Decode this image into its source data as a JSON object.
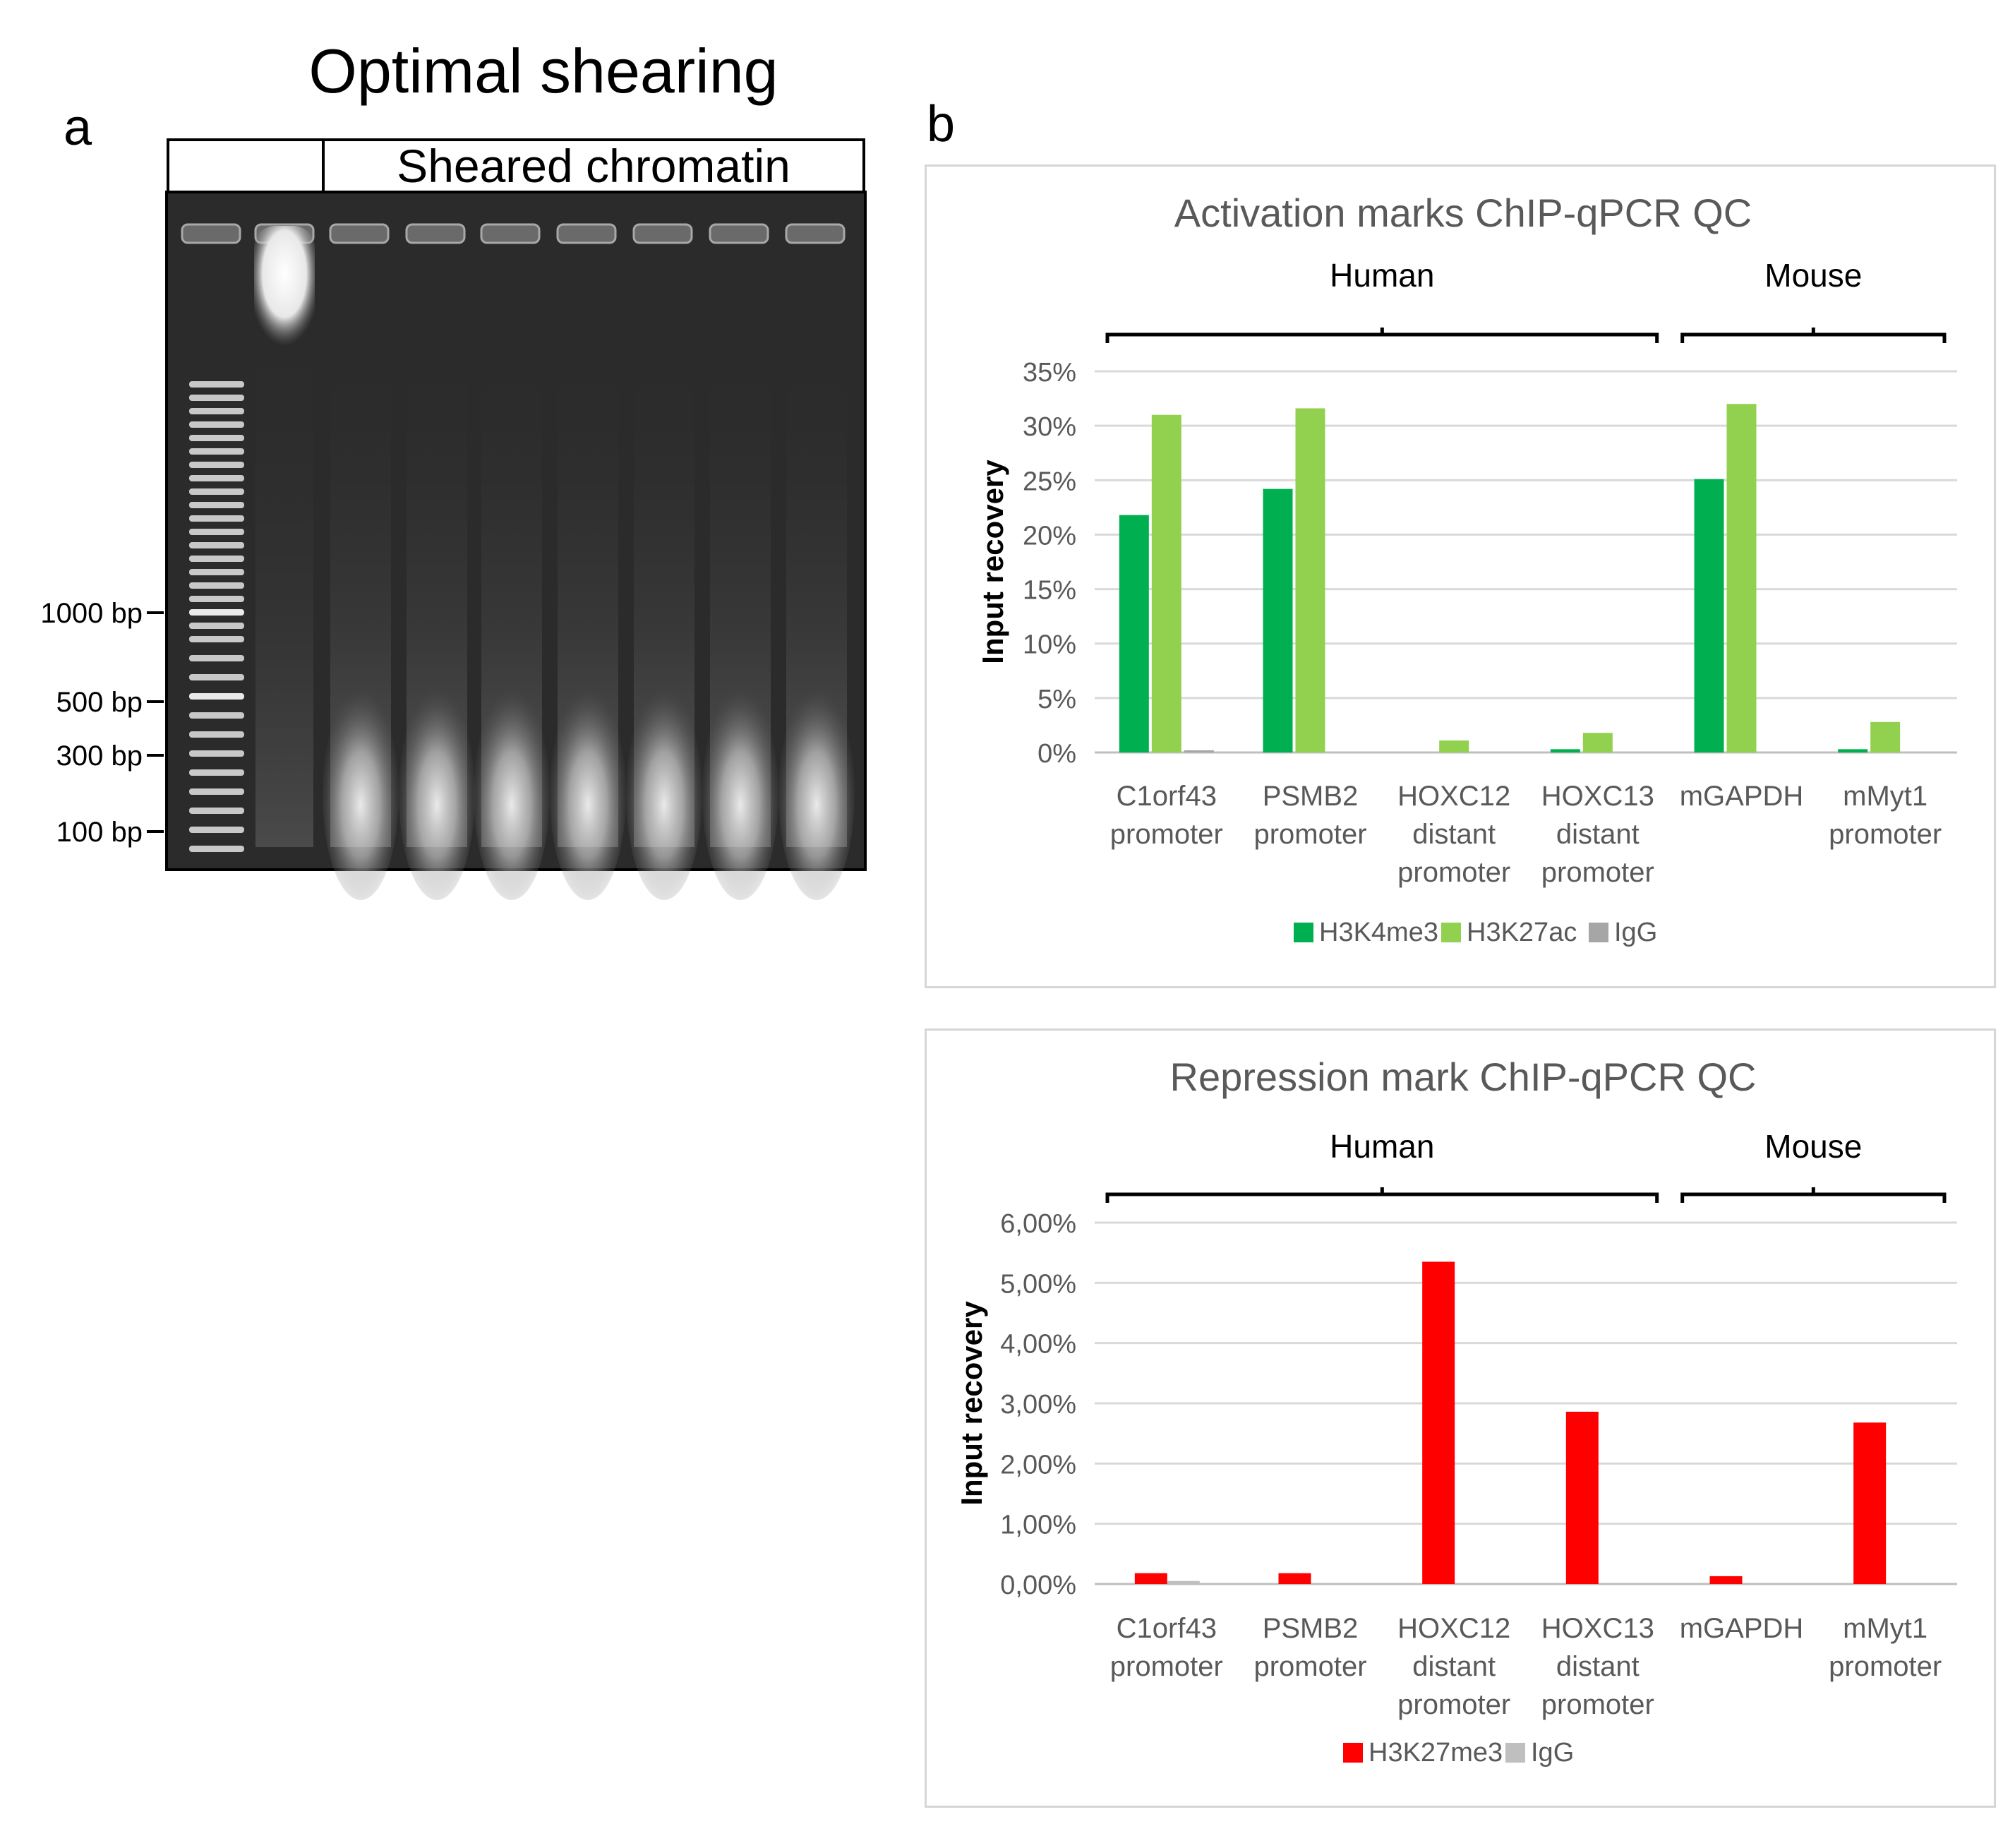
{
  "panel_a": {
    "letter": "a",
    "title": "Optimal shearing",
    "header_label": "Sheared chromatin",
    "size_markers": [
      "1000 bp",
      "500 bp",
      "300 bp",
      "100 bp"
    ]
  },
  "panel_b": {
    "letter": "b"
  },
  "colors": {
    "h3k4me3": "#00b050",
    "h3k27ac": "#92d050",
    "igg": "#a6a6a6",
    "h3k27me3": "#ff0000",
    "grid": "#d9d9d9",
    "tick_text": "#595959",
    "title_text": "#595959"
  },
  "chart_data": [
    {
      "type": "bar",
      "title": "Activation marks ChIP-qPCR QC",
      "ylabel": "Input recovery",
      "xlabel": "",
      "ylim": [
        0,
        35
      ],
      "yticks": [
        "0%",
        "5%",
        "10%",
        "15%",
        "20%",
        "25%",
        "30%",
        "35%"
      ],
      "groups": [
        {
          "label": "Human",
          "span": [
            0,
            3
          ]
        },
        {
          "label": "Mouse",
          "span": [
            4,
            5
          ]
        }
      ],
      "categories": [
        [
          "C1orf43",
          "promoter"
        ],
        [
          "PSMB2",
          "promoter"
        ],
        [
          "HOXC12",
          "distant",
          "promoter"
        ],
        [
          "HOXC13",
          "distant",
          "promoter"
        ],
        [
          "mGAPDH"
        ],
        [
          "mMyt1",
          "promoter"
        ]
      ],
      "series": [
        {
          "name": "H3K4me3",
          "color": "#00b050",
          "values": [
            21.8,
            24.2,
            0.0,
            0.3,
            25.1,
            0.3
          ]
        },
        {
          "name": "H3K27ac",
          "color": "#92d050",
          "values": [
            31.0,
            31.6,
            1.1,
            1.8,
            32.0,
            2.8
          ]
        },
        {
          "name": "IgG",
          "color": "#a6a6a6",
          "values": [
            0.2,
            0.0,
            0.0,
            0.0,
            0.0,
            0.0
          ]
        }
      ]
    },
    {
      "type": "bar",
      "title": "Repression mark ChIP-qPCR QC",
      "ylabel": "Input recovery",
      "xlabel": "",
      "ylim": [
        0,
        6
      ],
      "yticks": [
        "0,00%",
        "1,00%",
        "2,00%",
        "3,00%",
        "4,00%",
        "5,00%",
        "6,00%"
      ],
      "groups": [
        {
          "label": "Human",
          "span": [
            0,
            3
          ]
        },
        {
          "label": "Mouse",
          "span": [
            4,
            5
          ]
        }
      ],
      "categories": [
        [
          "C1orf43",
          "promoter"
        ],
        [
          "PSMB2",
          "promoter"
        ],
        [
          "HOXC12",
          "distant",
          "promoter"
        ],
        [
          "HOXC13",
          "distant",
          "promoter"
        ],
        [
          "mGAPDH"
        ],
        [
          "mMyt1",
          "promoter"
        ]
      ],
      "series": [
        {
          "name": "H3K27me3",
          "color": "#ff0000",
          "values": [
            0.18,
            0.18,
            5.35,
            2.86,
            0.13,
            2.68
          ]
        },
        {
          "name": "IgG",
          "color": "#bfbfbf",
          "values": [
            0.05,
            0.0,
            0.0,
            0.0,
            0.0,
            0.0
          ]
        }
      ]
    }
  ]
}
